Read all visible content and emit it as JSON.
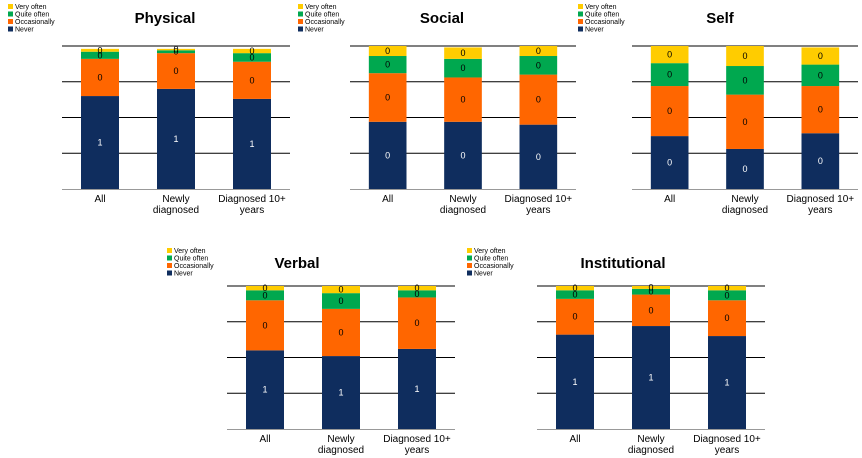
{
  "colors": {
    "never": "#0f2d5e",
    "occasionally": "#ff6600",
    "quite_often": "#00a84f",
    "very_often": "#ffcc00",
    "gridline": "#000000",
    "axis": "#999999",
    "bar_label_dark": "#ffffff",
    "bar_label_light": "#000000"
  },
  "chart_data": [
    {
      "type": "bar",
      "stacked": true,
      "title": "Physical",
      "categories": [
        "All",
        "Newly diagnosed",
        "Diagnosed 10+ years"
      ],
      "series": [
        {
          "name": "Never",
          "values": [
            0.65,
            0.7,
            0.63
          ],
          "labels": [
            "1",
            "1",
            "1"
          ]
        },
        {
          "name": "Occasionally",
          "values": [
            0.26,
            0.25,
            0.26
          ],
          "labels": [
            "0",
            "0",
            "0"
          ]
        },
        {
          "name": "Quite often",
          "values": [
            0.05,
            0.02,
            0.06
          ],
          "labels": [
            "0",
            "0",
            "0"
          ]
        },
        {
          "name": "Very often",
          "values": [
            0.02,
            0.01,
            0.03
          ],
          "labels": [
            "0",
            "0",
            "0"
          ]
        }
      ],
      "ylim": [
        0,
        1
      ],
      "grid": true,
      "legend": "top-left",
      "legend_entries": [
        "Very often",
        "Quite often",
        "Occasionally",
        "Never"
      ]
    },
    {
      "type": "bar",
      "stacked": true,
      "title": "Social",
      "categories": [
        "All",
        "Newly diagnosed",
        "Diagnosed 10+ years"
      ],
      "series": [
        {
          "name": "Never",
          "values": [
            0.47,
            0.47,
            0.45
          ],
          "labels": [
            "0",
            "0",
            "0"
          ]
        },
        {
          "name": "Occasionally",
          "values": [
            0.34,
            0.31,
            0.35
          ],
          "labels": [
            "0",
            "0",
            "0"
          ]
        },
        {
          "name": "Quite often",
          "values": [
            0.12,
            0.13,
            0.13
          ],
          "labels": [
            "0",
            "0",
            "0"
          ]
        },
        {
          "name": "Very often",
          "values": [
            0.07,
            0.08,
            0.07
          ],
          "labels": [
            "0",
            "0",
            "0"
          ]
        }
      ],
      "ylim": [
        0,
        1
      ],
      "grid": true,
      "legend": "top-left",
      "legend_entries": [
        "Very often",
        "Quite often",
        "Occasionally",
        "Never"
      ]
    },
    {
      "type": "bar",
      "stacked": true,
      "title": "Self",
      "categories": [
        "All",
        "Newly diagnosed",
        "Diagnosed 10+ years"
      ],
      "series": [
        {
          "name": "Never",
          "values": [
            0.37,
            0.28,
            0.39
          ],
          "labels": [
            "0",
            "0",
            "0"
          ]
        },
        {
          "name": "Occasionally",
          "values": [
            0.35,
            0.38,
            0.33
          ],
          "labels": [
            "0",
            "0",
            "0"
          ]
        },
        {
          "name": "Quite often",
          "values": [
            0.16,
            0.2,
            0.15
          ],
          "labels": [
            "0",
            "0",
            "0"
          ]
        },
        {
          "name": "Very often",
          "values": [
            0.12,
            0.14,
            0.12
          ],
          "labels": [
            "0",
            "0",
            "0"
          ]
        }
      ],
      "ylim": [
        0,
        1
      ],
      "grid": true,
      "legend": "top-left",
      "legend_entries": [
        "Very often",
        "Quite often",
        "Occasionally",
        "Never"
      ]
    },
    {
      "type": "bar",
      "stacked": true,
      "title": "Verbal",
      "categories": [
        "All",
        "Newly diagnosed",
        "Diagnosed 10+ years"
      ],
      "series": [
        {
          "name": "Never",
          "values": [
            0.55,
            0.51,
            0.56
          ],
          "labels": [
            "1",
            "1",
            "1"
          ]
        },
        {
          "name": "Occasionally",
          "values": [
            0.35,
            0.33,
            0.36
          ],
          "labels": [
            "0",
            "0",
            "0"
          ]
        },
        {
          "name": "Quite often",
          "values": [
            0.07,
            0.11,
            0.05
          ],
          "labels": [
            "0",
            "0",
            "0"
          ]
        },
        {
          "name": "Very often",
          "values": [
            0.03,
            0.05,
            0.03
          ],
          "labels": [
            "0",
            "0",
            "0"
          ]
        }
      ],
      "ylim": [
        0,
        1
      ],
      "grid": true,
      "legend": "top-left",
      "legend_entries": [
        "Very often",
        "Quite often",
        "Occasionally",
        "Never"
      ]
    },
    {
      "type": "bar",
      "stacked": true,
      "title": "Institutional",
      "categories": [
        "All",
        "Newly diagnosed",
        "Diagnosed 10+ years"
      ],
      "series": [
        {
          "name": "Never",
          "values": [
            0.66,
            0.72,
            0.65
          ],
          "labels": [
            "1",
            "1",
            "1"
          ]
        },
        {
          "name": "Occasionally",
          "values": [
            0.25,
            0.22,
            0.25
          ],
          "labels": [
            "0",
            "0",
            "0"
          ]
        },
        {
          "name": "Quite often",
          "values": [
            0.06,
            0.04,
            0.07
          ],
          "labels": [
            "0",
            "0",
            "0"
          ]
        },
        {
          "name": "Very often",
          "values": [
            0.03,
            0.02,
            0.03
          ],
          "labels": [
            "0",
            "0",
            "0"
          ]
        }
      ],
      "ylim": [
        0,
        1
      ],
      "grid": true,
      "legend": "top-left",
      "legend_entries": [
        "Very often",
        "Quite often",
        "Occasionally",
        "Never"
      ]
    }
  ]
}
